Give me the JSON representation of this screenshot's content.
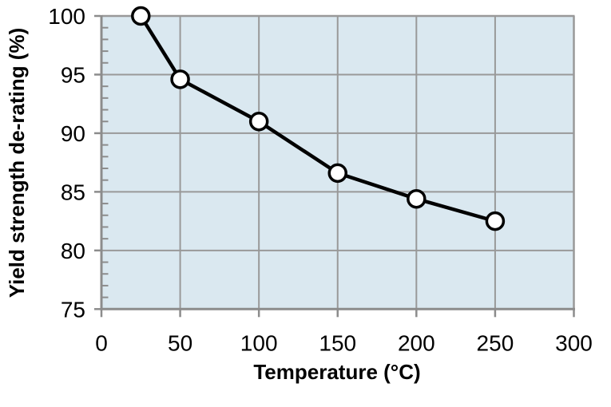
{
  "chart_data": {
    "type": "line",
    "title": "",
    "xlabel": "Temperature (°C)",
    "ylabel": "Yield strength de-rating (%)",
    "x": [
      25,
      50,
      100,
      150,
      200,
      250
    ],
    "y": [
      100,
      94.6,
      91.0,
      86.6,
      84.4,
      82.5
    ],
    "series_name": "Yield strength de-rating",
    "xlim": [
      0,
      300
    ],
    "ylim": [
      75,
      100
    ],
    "x_major_step": 50,
    "y_major_step": 5,
    "y_minor_step": 1,
    "x_tick_labels": [
      "0",
      "50",
      "100",
      "150",
      "200",
      "250",
      "300"
    ],
    "y_tick_labels": [
      "75",
      "80",
      "85",
      "90",
      "95",
      "100"
    ],
    "grid": true,
    "legend": "none",
    "colors": {
      "page_bg": "#ffffff",
      "plot_bg": "#dae8f0",
      "gridline": "#999999",
      "axis": "#8c8c8c",
      "line": "#000000",
      "marker_fill": "#ffffff",
      "marker_stroke": "#000000",
      "text": "#000000"
    }
  }
}
